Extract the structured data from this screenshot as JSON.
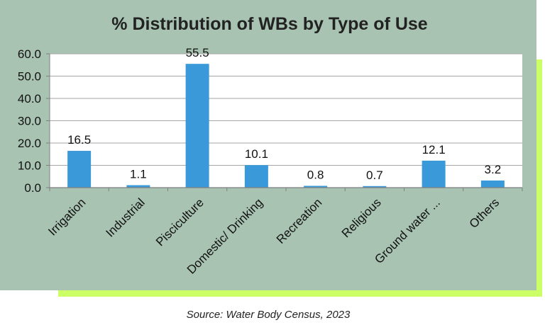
{
  "chart_data": {
    "type": "bar",
    "title": "% Distribution of WBs by Type of Use",
    "categories": [
      "Irrigation",
      "Industrial",
      "Pisciculture",
      "Domestic/ Drinking",
      "Recreation",
      "Religious",
      "Ground water ...",
      "Others"
    ],
    "values": [
      16.5,
      1.1,
      55.5,
      10.1,
      0.8,
      0.7,
      12.1,
      3.2
    ],
    "data_labels": [
      "16.5",
      "1.1",
      "55.5",
      "10.1",
      "0.8",
      "0.7",
      "12.1",
      "3.2"
    ],
    "ylim": [
      0,
      60
    ],
    "yticks": [
      0,
      10,
      20,
      30,
      40,
      50,
      60
    ],
    "ytick_labels": [
      "0.0",
      "10.0",
      "20.0",
      "30.0",
      "40.0",
      "50.0",
      "60.0"
    ],
    "grid": true,
    "legend": "none",
    "bar_color": "#3a9ad9",
    "xlabel": "",
    "ylabel": ""
  },
  "colors": {
    "card_background": "#a8c3b2",
    "accent_shadow": "#ccff66",
    "plot_background": "#ffffff",
    "gridline": "#a6a6a6"
  },
  "source": "Source: Water Body Census, 2023"
}
